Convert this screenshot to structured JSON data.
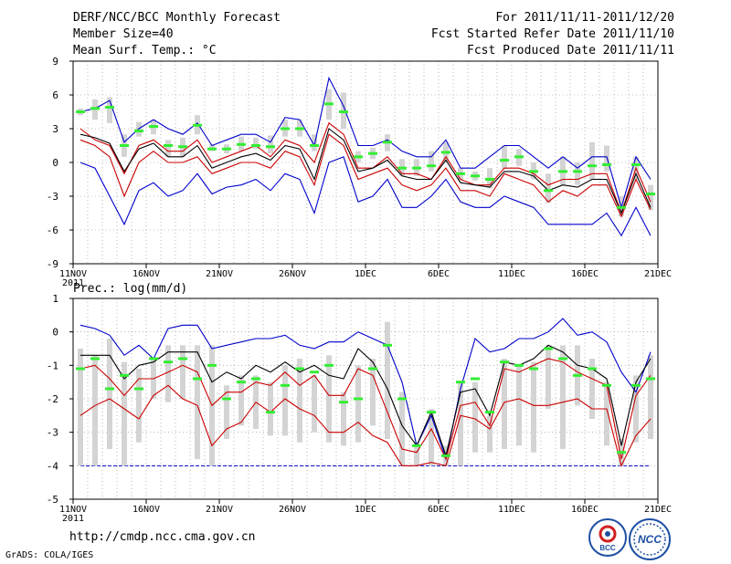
{
  "header": {
    "title": "DERF/NCC/BCC Monthly Forecast",
    "member_size": "Member Size=40",
    "variable1": "Mean Surf. Temp.: °C",
    "period": "For 2011/11/11-2011/12/20",
    "started": "Fcst Started Refer Date 2011/11/10",
    "produced": "Fcst Produced Date 2011/11/11"
  },
  "panel2_label": "Prec.: log(mm/d)",
  "footer_url": "http://cmdp.ncc.cma.gov.cn",
  "credit": "GrADS: COLA/IGES",
  "logos": {
    "bcc": "BCC",
    "ncc": "NCC"
  },
  "colors": {
    "max_min": "#0000cc",
    "ensemble_mean": "#000000",
    "spread": "#cc0000",
    "median": "#33ee33",
    "box": "#d4d4d4"
  },
  "chart_data": [
    {
      "type": "line",
      "variable": "Mean Surf. Temp. (°C)",
      "ylim": [
        -9,
        9
      ],
      "yticks": [
        9,
        6,
        3,
        0,
        -3,
        -6,
        -9
      ],
      "xlim": [
        0,
        40
      ],
      "xtick_labels": [
        "11NOV\n2011",
        "16NOV",
        "21NOV",
        "26NOV",
        "1DEC",
        "6DEC",
        "11DEC",
        "16DEC",
        "21DEC"
      ],
      "series": [
        {
          "name": "max",
          "values": [
            4.5,
            4.8,
            5.5,
            1.8,
            3.0,
            3.8,
            3.0,
            2.5,
            3.5,
            1.5,
            2.0,
            2.5,
            2.5,
            1.8,
            4.0,
            3.8,
            1.5,
            7.5,
            5.0,
            1.5,
            1.5,
            2.0,
            1.0,
            0.5,
            0.5,
            2.0,
            -0.5,
            -0.5,
            0.5,
            1.5,
            1.5,
            0.5,
            -0.5,
            0.5,
            -0.5,
            0.5,
            0.5,
            -4.0,
            0.5,
            -1.5
          ]
        },
        {
          "name": "upper",
          "values": [
            3.0,
            2.0,
            1.5,
            -1.0,
            1.5,
            2.0,
            1.0,
            1.0,
            2.0,
            0.0,
            0.5,
            1.0,
            1.5,
            0.5,
            2.0,
            1.5,
            0.0,
            3.5,
            2.5,
            -0.5,
            -0.5,
            0.5,
            -1.0,
            -1.0,
            -1.5,
            0.5,
            -1.5,
            -2.0,
            -2.0,
            -0.5,
            -0.5,
            -1.0,
            -2.0,
            -1.5,
            -1.5,
            -1.0,
            -1.0,
            -4.5,
            -0.5,
            -3.5
          ]
        },
        {
          "name": "mean",
          "values": [
            2.5,
            2.2,
            1.7,
            -0.8,
            1.2,
            1.7,
            0.5,
            0.5,
            1.5,
            -0.5,
            0.0,
            0.5,
            0.8,
            0.2,
            1.5,
            1.2,
            -1.5,
            3.0,
            2.0,
            -0.8,
            -0.5,
            0.2,
            -1.2,
            -1.5,
            -1.5,
            0.2,
            -1.8,
            -2.0,
            -2.2,
            -0.8,
            -0.8,
            -1.2,
            -2.5,
            -2.0,
            -2.2,
            -1.5,
            -1.5,
            -4.5,
            -1.0,
            -4.0
          ]
        },
        {
          "name": "lower",
          "values": [
            2.0,
            1.5,
            0.5,
            -3.0,
            0.0,
            1.0,
            0.0,
            0.0,
            0.5,
            -1.0,
            -0.5,
            0.0,
            0.0,
            -0.5,
            1.0,
            0.5,
            -2.0,
            2.5,
            1.5,
            -1.5,
            -1.0,
            -0.5,
            -2.0,
            -2.5,
            -2.0,
            -0.5,
            -2.5,
            -2.5,
            -3.0,
            -1.0,
            -1.5,
            -2.0,
            -3.5,
            -2.5,
            -3.0,
            -2.0,
            -2.0,
            -4.8,
            -1.5,
            -4.2
          ]
        },
        {
          "name": "min",
          "values": [
            0.0,
            -0.5,
            -3.0,
            -5.5,
            -2.5,
            -1.8,
            -3.0,
            -2.5,
            -1.0,
            -2.8,
            -2.2,
            -2.0,
            -1.5,
            -2.5,
            -1.0,
            -1.5,
            -4.5,
            0.0,
            0.5,
            -3.5,
            -3.0,
            -1.5,
            -4.0,
            -4.0,
            -3.0,
            -1.5,
            -3.5,
            -4.0,
            -4.0,
            -3.0,
            -3.5,
            -4.0,
            -5.5,
            -5.5,
            -5.5,
            -5.5,
            -4.5,
            -6.5,
            -4.0,
            -6.5
          ]
        },
        {
          "name": "median",
          "values": [
            4.5,
            4.8,
            4.9,
            1.5,
            2.8,
            3.2,
            1.5,
            1.4,
            3.3,
            1.2,
            1.2,
            1.6,
            1.5,
            1.4,
            3.0,
            3.0,
            1.5,
            5.2,
            4.5,
            0.5,
            0.8,
            1.8,
            -0.5,
            -0.5,
            -0.3,
            0.9,
            -1.0,
            -1.2,
            -1.5,
            0.2,
            0.5,
            -0.8,
            -2.5,
            -0.8,
            -0.8,
            -0.3,
            -0.2,
            -4.0,
            -0.2,
            -2.8
          ]
        }
      ],
      "box_ranges": [
        [
          4.2,
          4.8
        ],
        [
          3.8,
          5.6
        ],
        [
          3.5,
          5.8
        ],
        [
          0.5,
          2.5
        ],
        [
          2.3,
          3.6
        ],
        [
          2.5,
          3.8
        ],
        [
          0.5,
          2.0
        ],
        [
          0.5,
          2.2
        ],
        [
          2.5,
          4.2
        ],
        [
          1.0,
          1.6
        ],
        [
          0.8,
          1.6
        ],
        [
          1.0,
          2.3
        ],
        [
          1.2,
          2.2
        ],
        [
          0.8,
          2.4
        ],
        [
          2.3,
          3.8
        ],
        [
          2.3,
          3.8
        ],
        [
          1.0,
          2.5
        ],
        [
          3.8,
          6.5
        ],
        [
          3.0,
          6.2
        ],
        [
          0.0,
          1.0
        ],
        [
          0.3,
          1.3
        ],
        [
          1.0,
          2.5
        ],
        [
          -1.2,
          0.3
        ],
        [
          -1.2,
          0.3
        ],
        [
          -0.8,
          1.0
        ],
        [
          0.0,
          1.8
        ],
        [
          -1.6,
          -0.5
        ],
        [
          -1.6,
          -0.8
        ],
        [
          -2.3,
          -0.5
        ],
        [
          -0.6,
          1.5
        ],
        [
          -0.3,
          1.2
        ],
        [
          -1.5,
          0.0
        ],
        [
          -3.6,
          -1.0
        ],
        [
          -2.0,
          0.5
        ],
        [
          -2.0,
          0.0
        ],
        [
          -1.5,
          1.8
        ],
        [
          -0.8,
          1.5
        ],
        [
          -4.8,
          -3.0
        ],
        [
          -1.5,
          0.5
        ],
        [
          -4.2,
          -2.0
        ]
      ]
    },
    {
      "type": "line",
      "variable": "Prec.: log(mm/d)",
      "ylim": [
        -5,
        1
      ],
      "yticks": [
        1,
        0,
        -1,
        -2,
        -3,
        -4,
        -5
      ],
      "xlim": [
        0,
        40
      ],
      "xtick_labels": [
        "11NOV\n2011",
        "16NOV",
        "21NOV",
        "26NOV",
        "1DEC",
        "6DEC",
        "11DEC",
        "16DEC",
        "21DEC"
      ],
      "baseline": -4,
      "series": [
        {
          "name": "max",
          "values": [
            0.2,
            0.1,
            -0.1,
            -0.7,
            -0.4,
            -0.8,
            0.1,
            0.2,
            0.2,
            -0.5,
            -0.4,
            -0.3,
            -0.2,
            -0.2,
            -0.1,
            -0.4,
            -0.5,
            -0.3,
            -0.3,
            0.0,
            -0.2,
            -0.4,
            -1.5,
            -3.4,
            -2.5,
            -3.8,
            -1.7,
            -0.2,
            -0.6,
            -0.5,
            -0.2,
            -0.2,
            0.0,
            0.4,
            -0.1,
            0.0,
            -0.3,
            -1.2,
            -1.8,
            -0.6
          ]
        },
        {
          "name": "mean",
          "values": [
            -0.7,
            -0.7,
            -0.7,
            -1.4,
            -1.0,
            -0.9,
            -0.6,
            -0.6,
            -0.6,
            -1.5,
            -1.2,
            -1.4,
            -1.0,
            -1.2,
            -0.9,
            -1.2,
            -1.0,
            -1.3,
            -1.4,
            -0.5,
            -0.9,
            -1.7,
            -2.8,
            -3.4,
            -2.4,
            -3.7,
            -1.8,
            -1.7,
            -2.5,
            -0.9,
            -1.0,
            -0.8,
            -0.4,
            -0.6,
            -1.0,
            -1.1,
            -1.4,
            -3.4,
            -1.5,
            -0.8
          ]
        },
        {
          "name": "upper",
          "values": [
            -1.1,
            -1.0,
            -1.4,
            -1.9,
            -1.4,
            -1.4,
            -1.2,
            -1.0,
            -1.2,
            -2.2,
            -1.8,
            -1.8,
            -1.5,
            -1.6,
            -1.2,
            -1.6,
            -1.3,
            -1.9,
            -1.9,
            -1.1,
            -1.3,
            -2.4,
            -3.5,
            -3.6,
            -2.9,
            -3.8,
            -2.2,
            -2.1,
            -2.8,
            -1.1,
            -1.2,
            -1.0,
            -0.8,
            -0.9,
            -1.2,
            -1.4,
            -1.6,
            -3.8,
            -1.9,
            -1.3
          ]
        },
        {
          "name": "lower",
          "values": [
            -2.5,
            -2.2,
            -2.0,
            -2.3,
            -2.6,
            -1.9,
            -1.6,
            -2.0,
            -2.2,
            -3.4,
            -2.9,
            -2.7,
            -2.1,
            -2.4,
            -2.0,
            -2.3,
            -2.5,
            -3.0,
            -3.0,
            -2.7,
            -3.1,
            -3.3,
            -4.0,
            -4.0,
            -3.9,
            -4.0,
            -2.5,
            -2.6,
            -2.9,
            -2.1,
            -2.0,
            -2.2,
            -2.2,
            -2.1,
            -2.0,
            -2.3,
            -2.3,
            -4.0,
            -3.1,
            -2.6
          ]
        },
        {
          "name": "median",
          "values": [
            -1.1,
            -0.8,
            -1.7,
            -1.3,
            -1.7,
            -0.8,
            -0.9,
            -0.8,
            -1.4,
            -1.0,
            -2.0,
            -1.5,
            -1.4,
            -2.4,
            -1.6,
            -1.1,
            -1.2,
            -1.0,
            -2.1,
            -2.0,
            -1.1,
            -0.4,
            -2.0,
            -3.4,
            -2.4,
            -3.7,
            -1.5,
            -1.4,
            -2.4,
            -0.9,
            -1.0,
            -1.1,
            -0.5,
            -0.8,
            -1.3,
            -1.1,
            -1.6,
            -3.6,
            -1.6,
            -1.4
          ]
        }
      ],
      "box_ranges": [
        [
          -4.0,
          -0.5
        ],
        [
          -4.0,
          -0.7
        ],
        [
          -3.5,
          -0.2
        ],
        [
          -4.0,
          -0.9
        ],
        [
          -3.3,
          -1.1
        ],
        [
          -2.0,
          -0.8
        ],
        [
          -2.1,
          -0.4
        ],
        [
          -2.0,
          -0.4
        ],
        [
          -3.8,
          -0.4
        ],
        [
          -4.0,
          -0.4
        ],
        [
          -3.2,
          -1.6
        ],
        [
          -2.8,
          -1.3
        ],
        [
          -2.9,
          -1.3
        ],
        [
          -3.1,
          -1.5
        ],
        [
          -3.1,
          -1.0
        ],
        [
          -3.3,
          -0.8
        ],
        [
          -3.0,
          -1.3
        ],
        [
          -3.3,
          -0.7
        ],
        [
          -3.4,
          -1.8
        ],
        [
          -3.3,
          -1.0
        ],
        [
          -2.8,
          -0.8
        ],
        [
          -3.2,
          0.3
        ],
        [
          -4.0,
          -1.8
        ],
        [
          -4.0,
          -3.3
        ],
        [
          -4.0,
          -2.3
        ],
        [
          -4.0,
          -3.4
        ],
        [
          -4.0,
          -1.5
        ],
        [
          -3.6,
          -1.5
        ],
        [
          -3.6,
          -2.5
        ],
        [
          -3.5,
          -0.8
        ],
        [
          -3.4,
          -1.0
        ],
        [
          -3.6,
          -0.9
        ],
        [
          -2.3,
          -0.4
        ],
        [
          -3.5,
          -0.4
        ],
        [
          -2.2,
          -0.4
        ],
        [
          -2.6,
          -0.8
        ],
        [
          -3.4,
          -1.5
        ],
        [
          -4.0,
          -3.2
        ],
        [
          -3.3,
          -1.3
        ],
        [
          -3.2,
          -0.7
        ]
      ]
    }
  ]
}
